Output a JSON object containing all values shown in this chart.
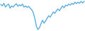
{
  "values": [
    72,
    68,
    75,
    65,
    70,
    73,
    62,
    68,
    65,
    70,
    74,
    67,
    71,
    68,
    73,
    65,
    68,
    64,
    67,
    62,
    58,
    50,
    35,
    15,
    5,
    10,
    20,
    30,
    22,
    28,
    35,
    42,
    38,
    45,
    52,
    48,
    55,
    60,
    55,
    62,
    68,
    63,
    70,
    68,
    73,
    70,
    75,
    72,
    78,
    74,
    78,
    75,
    80,
    76,
    80
  ],
  "line_color": "#5baee0",
  "background_color": "#ffffff",
  "linewidth": 1.0
}
